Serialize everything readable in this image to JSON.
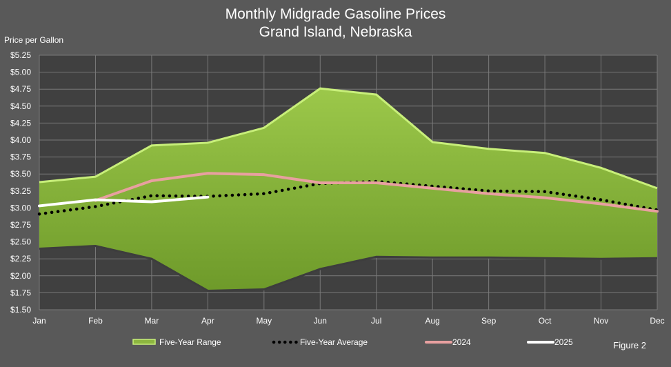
{
  "chart_data": {
    "type": "area",
    "title": "Monthly Midgrade Gasoline Prices",
    "subtitle": "Grand Island, Nebraska",
    "ylabel": "Price per Gallon",
    "xlabel": "",
    "categories": [
      "Jan",
      "Feb",
      "Mar",
      "Apr",
      "May",
      "Jun",
      "Jul",
      "Aug",
      "Sep",
      "Oct",
      "Nov",
      "Dec"
    ],
    "ylim": [
      1.5,
      5.25
    ],
    "y_ticks": [
      "$1.50",
      "$1.75",
      "$2.00",
      "$2.25",
      "$2.50",
      "$2.75",
      "$3.00",
      "$3.25",
      "$3.50",
      "$3.75",
      "$4.00",
      "$4.25",
      "$4.50",
      "$4.75",
      "$5.00",
      "$5.25"
    ],
    "grid": true,
    "legend_position": "bottom",
    "range": {
      "name": "Five-Year Range",
      "color": "#8db640",
      "high": [
        3.38,
        3.46,
        3.92,
        3.96,
        4.18,
        4.76,
        4.67,
        3.97,
        3.87,
        3.81,
        3.59,
        3.29
      ],
      "low": [
        2.4,
        2.44,
        2.25,
        1.78,
        1.8,
        2.1,
        2.28,
        2.27,
        2.27,
        2.26,
        2.25,
        2.26
      ]
    },
    "series": [
      {
        "name": "Five-Year Average",
        "color": "#000000",
        "style": "dotted",
        "values": [
          2.91,
          3.02,
          3.18,
          3.17,
          3.21,
          3.36,
          3.39,
          3.32,
          3.25,
          3.24,
          3.12,
          2.97
        ]
      },
      {
        "name": "2024",
        "color": "#e8a0a0",
        "style": "solid",
        "values": [
          null,
          3.11,
          3.4,
          3.51,
          3.49,
          3.37,
          3.37,
          3.29,
          3.21,
          3.15,
          3.06,
          2.95
        ]
      },
      {
        "name": "2025",
        "color": "#ffffff",
        "style": "solid",
        "values": [
          3.03,
          3.12,
          3.09,
          3.16,
          null,
          null,
          null,
          null,
          null,
          null,
          null,
          null
        ]
      }
    ]
  },
  "figure_label": "Figure 2",
  "colors": {
    "background": "#595959",
    "plot_area": "#404040",
    "grid": "#7a7a7a"
  }
}
